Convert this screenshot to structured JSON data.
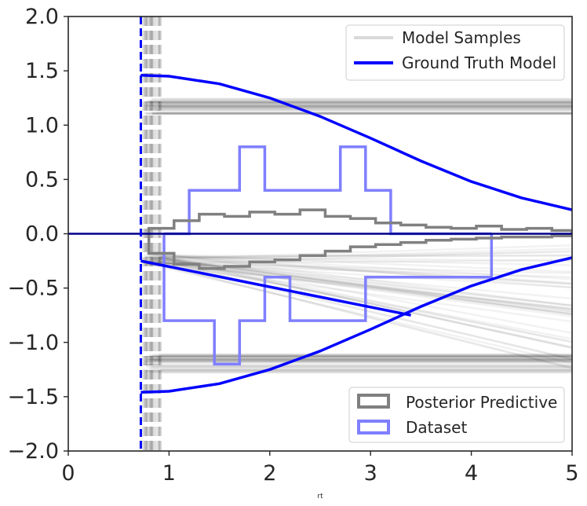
{
  "chart_data": {
    "type": "line",
    "title": "",
    "xlabel": "rt",
    "ylabel": "",
    "xlim": [
      0,
      5
    ],
    "ylim": [
      -2.0,
      2.0
    ],
    "xticks": [
      "0",
      "1",
      "2",
      "3",
      "4",
      "5"
    ],
    "yticks": [
      "2.0",
      "1.5",
      "1.0",
      "0.5",
      "0.0",
      "−0.5",
      "−1.0",
      "−1.5",
      "−2.0"
    ],
    "grid": false,
    "legend_top": {
      "placement": "top-right",
      "entries": [
        {
          "label": "Model Samples",
          "color": "#d9d9d9"
        },
        {
          "label": "Ground Truth Model",
          "color": "#0000ff"
        }
      ]
    },
    "legend_bottom": {
      "placement": "bottom-right",
      "entries": [
        {
          "label": "Posterior Predictive",
          "color": "#808080"
        },
        {
          "label": "Dataset",
          "color": "#7f7fff"
        }
      ]
    },
    "ground_truth": {
      "color": "#0000ff",
      "non_decision_time": 0.72,
      "upper_bound": {
        "x": [
          0.72,
          1.0,
          1.5,
          2.0,
          2.5,
          3.0,
          3.5,
          4.0,
          4.5,
          5.0
        ],
        "y": [
          1.46,
          1.45,
          1.38,
          1.25,
          1.08,
          0.88,
          0.67,
          0.48,
          0.33,
          0.22
        ]
      },
      "lower_bound": {
        "x": [
          0.72,
          1.0,
          1.5,
          2.0,
          2.5,
          3.0,
          3.5,
          4.0,
          4.5,
          5.0
        ],
        "y": [
          -1.46,
          -1.45,
          -1.38,
          -1.25,
          -1.08,
          -0.88,
          -0.67,
          -0.48,
          -0.33,
          -0.22
        ]
      },
      "trajectory": {
        "x": [
          0.72,
          3.4
        ],
        "y": [
          -0.25,
          -0.75
        ]
      }
    },
    "model_samples": {
      "color": "#000000",
      "ndt_range": [
        0.74,
        0.92
      ],
      "upper_band": [
        1.1,
        1.25
      ],
      "lower_band": [
        -1.1,
        -1.28
      ],
      "trajectory_start": [
        -0.28,
        -0.18
      ],
      "trajectory_slope": [
        -0.24,
        0.04
      ]
    },
    "posterior_predictive": {
      "color": "#808080",
      "bin_edges": [
        0.8,
        1.05,
        1.3,
        1.55,
        1.8,
        2.05,
        2.3,
        2.55,
        2.8,
        3.05,
        3.3,
        3.55,
        3.8,
        4.05,
        4.3,
        4.55,
        4.8,
        5.0
      ],
      "upper": [
        0.05,
        0.12,
        0.18,
        0.16,
        0.2,
        0.18,
        0.22,
        0.16,
        0.14,
        0.1,
        0.08,
        0.06,
        0.05,
        0.07,
        0.04,
        0.05,
        0.03
      ],
      "lower": [
        -0.18,
        -0.28,
        -0.32,
        -0.3,
        -0.26,
        -0.24,
        -0.2,
        -0.16,
        -0.12,
        -0.1,
        -0.08,
        -0.06,
        -0.05,
        -0.04,
        -0.03,
        -0.03,
        -0.02
      ]
    },
    "dataset": {
      "color": "#7f7fff",
      "bin_edges": [
        0.95,
        1.2,
        1.45,
        1.7,
        1.95,
        2.2,
        2.45,
        2.7,
        2.95,
        3.2,
        3.45,
        3.7,
        3.95,
        4.2
      ],
      "upper": [
        0.0,
        0.4,
        0.4,
        0.8,
        0.4,
        0.4,
        0.4,
        0.8,
        0.4,
        0.0,
        0.0,
        0.0,
        0.0
      ],
      "lower": [
        -0.8,
        -0.8,
        -1.2,
        -0.8,
        -0.4,
        -0.8,
        -0.8,
        -0.8,
        -0.4,
        -0.4,
        -0.4,
        -0.4,
        -0.4
      ]
    }
  }
}
